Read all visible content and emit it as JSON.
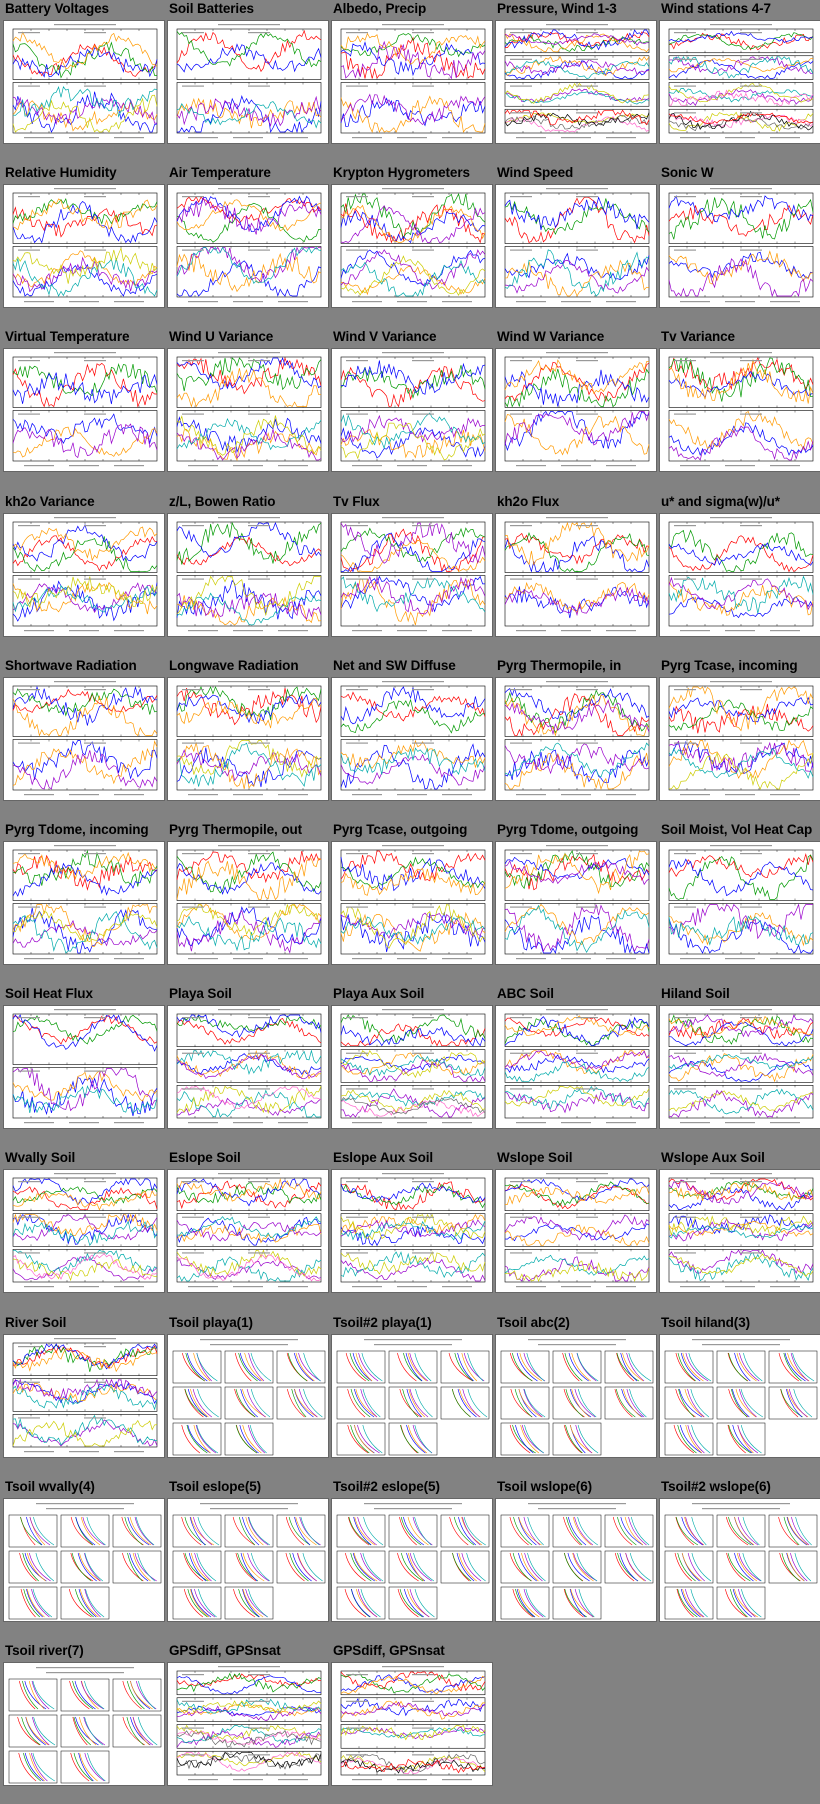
{
  "plots": [
    {
      "title": "Battery Voltages",
      "kind": "ts2"
    },
    {
      "title": "Soil Batteries",
      "kind": "ts2"
    },
    {
      "title": "Albedo, Precip",
      "kind": "ts2b"
    },
    {
      "title": "Pressure, Wind 1-3",
      "kind": "ts4"
    },
    {
      "title": "Wind stations 4-7",
      "kind": "ts4"
    },
    {
      "title": "Relative Humidity",
      "kind": "ts2"
    },
    {
      "title": "Air Temperature",
      "kind": "ts2"
    },
    {
      "title": "Krypton Hygrometers",
      "kind": "ts2"
    },
    {
      "title": "Wind Speed",
      "kind": "ts2"
    },
    {
      "title": "Sonic W",
      "kind": "ts2"
    },
    {
      "title": "Virtual Temperature",
      "kind": "ts2"
    },
    {
      "title": "Wind U Variance",
      "kind": "ts2"
    },
    {
      "title": "Wind V Variance",
      "kind": "ts2"
    },
    {
      "title": "Wind W Variance",
      "kind": "ts2"
    },
    {
      "title": "Tv Variance",
      "kind": "ts2"
    },
    {
      "title": "kh2o Variance",
      "kind": "ts2"
    },
    {
      "title": "z/L, Bowen Ratio",
      "kind": "ts2"
    },
    {
      "title": "Tv Flux",
      "kind": "ts2"
    },
    {
      "title": "kh2o Flux",
      "kind": "ts2"
    },
    {
      "title": "u* and sigma(w)/u*",
      "kind": "ts2"
    },
    {
      "title": "Shortwave Radiation",
      "kind": "ts2"
    },
    {
      "title": "Longwave Radiation",
      "kind": "ts2"
    },
    {
      "title": "Net and SW Diffuse",
      "kind": "ts2"
    },
    {
      "title": "Pyrg Thermopile, in",
      "kind": "ts2"
    },
    {
      "title": "Pyrg Tcase, incoming",
      "kind": "ts2"
    },
    {
      "title": "Pyrg Tdome, incoming",
      "kind": "ts2"
    },
    {
      "title": "Pyrg Thermopile, out",
      "kind": "ts2"
    },
    {
      "title": "Pyrg Tcase, outgoing",
      "kind": "ts2"
    },
    {
      "title": "Pyrg Tdome, outgoing",
      "kind": "ts2"
    },
    {
      "title": "Soil Moist, Vol Heat Cap",
      "kind": "ts2"
    },
    {
      "title": "Soil Heat Flux",
      "kind": "ts2"
    },
    {
      "title": "Playa Soil",
      "kind": "ts3"
    },
    {
      "title": "Playa Aux Soil",
      "kind": "ts3"
    },
    {
      "title": "ABC Soil",
      "kind": "ts3"
    },
    {
      "title": "Hiland Soil",
      "kind": "ts3"
    },
    {
      "title": "Wvally Soil",
      "kind": "ts3"
    },
    {
      "title": "Eslope Soil",
      "kind": "ts3"
    },
    {
      "title": "Eslope Aux Soil",
      "kind": "ts3"
    },
    {
      "title": "Wslope Soil",
      "kind": "ts3"
    },
    {
      "title": "Wslope Aux Soil",
      "kind": "ts3"
    },
    {
      "title": "River Soil",
      "kind": "ts3"
    },
    {
      "title": "Tsoil playa(1)",
      "kind": "prof"
    },
    {
      "title": "Tsoil#2 playa(1)",
      "kind": "prof"
    },
    {
      "title": "Tsoil abc(2)",
      "kind": "prof"
    },
    {
      "title": "Tsoil hiland(3)",
      "kind": "prof"
    },
    {
      "title": "Tsoil wvally(4)",
      "kind": "prof"
    },
    {
      "title": "Tsoil eslope(5)",
      "kind": "prof"
    },
    {
      "title": "Tsoil#2 eslope(5)",
      "kind": "prof"
    },
    {
      "title": "Tsoil wslope(6)",
      "kind": "prof"
    },
    {
      "title": "Tsoil#2 wslope(6)",
      "kind": "prof"
    },
    {
      "title": "Tsoil river(7)",
      "kind": "prof"
    },
    {
      "title": "GPSdiff, GPSnsat",
      "kind": "ts4"
    },
    {
      "title": "GPSdiff, GPSnsat",
      "kind": "ts4"
    }
  ],
  "colors": {
    "page_bg": "#828282",
    "series": [
      "#ff0000",
      "#009900",
      "#0000ff",
      "#ff9900",
      "#9900cc",
      "#00aaaa",
      "#cccc00",
      "#ff66cc",
      "#666666",
      "#000000"
    ]
  }
}
